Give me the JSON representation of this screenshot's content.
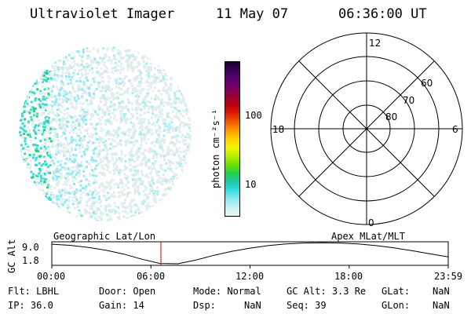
{
  "header": {
    "title": "Ultraviolet Imager",
    "date": "11 May 07",
    "time": "06:36:00 UT"
  },
  "colorbar": {
    "label": "photon cm⁻²s⁻¹",
    "ticks": [
      "100",
      "10"
    ],
    "colors": [
      "#1a0033",
      "#3a0057",
      "#5c0070",
      "#7a0060",
      "#9a0038",
      "#bb0010",
      "#dd1e00",
      "#f05a00",
      "#ff9a00",
      "#ffd000",
      "#f4f400",
      "#b8f000",
      "#6ae000",
      "#22d24a",
      "#1ec8a6",
      "#35dce0",
      "#89eaf0",
      "#c6f2f4",
      "#e6f7f7"
    ]
  },
  "polar": {
    "lat_labels": [
      "60",
      "70",
      "80"
    ],
    "mlt_labels": {
      "top": "12",
      "bottom": "0",
      "left": "18",
      "right": "6"
    }
  },
  "timeline": {
    "left_label": "Geographic Lat/Lon",
    "right_label": "Apex MLat/MLT",
    "y_axis_title": "GC Alt",
    "y_ticks": [
      "9.0",
      "1.8"
    ],
    "x_ticks": [
      "00:00",
      "06:00",
      "12:00",
      "18:00",
      "23:59"
    ],
    "marker_time": "06:36",
    "altitude_curve_re": [
      8.7,
      8.3,
      7.6,
      6.6,
      5.2,
      3.4,
      1.9,
      1.8,
      3.1,
      4.8,
      6.2,
      7.3,
      8.2,
      8.8,
      9.1,
      9.2,
      9.1,
      8.8,
      8.2,
      7.4,
      6.4,
      5.3,
      4.2
    ]
  },
  "footer": {
    "row1": [
      {
        "k": "Flt:",
        "v": "LBHL"
      },
      {
        "k": "Door:",
        "v": "Open"
      },
      {
        "k": "Mode:",
        "v": "Normal"
      },
      {
        "k": "GC Alt:",
        "v": "3.3 Re"
      },
      {
        "k": "GLat:",
        "v": "NaN"
      }
    ],
    "row2": [
      {
        "k": "IP:",
        "v": "36.0"
      },
      {
        "k": "Gain:",
        "v": "14"
      },
      {
        "k": "Dsp:",
        "v": "NaN"
      },
      {
        "k": "Seq:",
        "v": "39"
      },
      {
        "k": "GLon:",
        "v": "NaN"
      }
    ]
  }
}
